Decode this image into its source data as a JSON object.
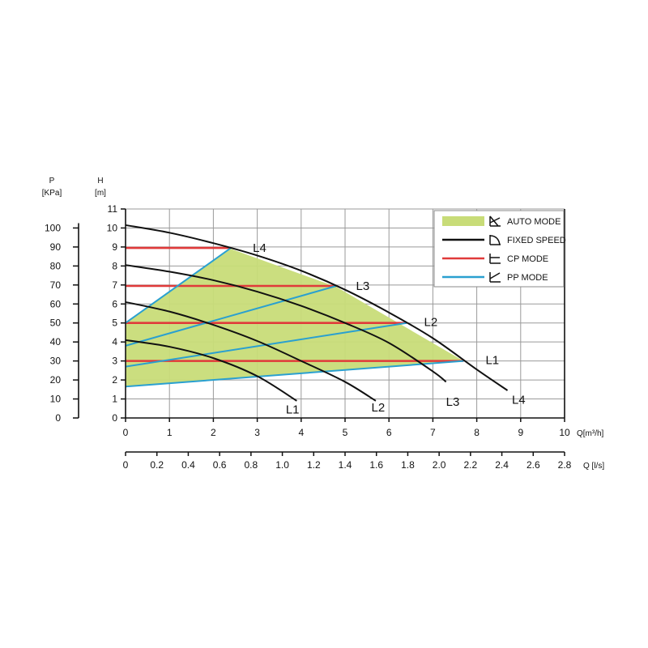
{
  "chart_data": {
    "type": "line",
    "axes": {
      "pressure": {
        "label": "P",
        "unit": "[KPa]",
        "range": [
          0,
          110
        ],
        "ticks": [
          0,
          10,
          20,
          30,
          40,
          50,
          60,
          70,
          80,
          90,
          100
        ]
      },
      "head": {
        "label": "H",
        "unit": "[m]",
        "range": [
          0,
          11
        ],
        "ticks": [
          0,
          1,
          2,
          3,
          4,
          5,
          6,
          7,
          8,
          9,
          10,
          11
        ]
      },
      "flow_m3h": {
        "label": "Q[m³/h]",
        "range": [
          0,
          10
        ],
        "ticks": [
          0,
          1,
          2,
          3,
          4,
          5,
          6,
          7,
          8,
          9,
          10
        ]
      },
      "flow_ls": {
        "label": "Q [l/s]",
        "range": [
          0,
          2.8
        ],
        "ticks": [
          "0",
          "0.2",
          "0.4",
          "0.6",
          "0.8",
          "1.0",
          "1.2",
          "1.4",
          "1.6",
          "1.8",
          "2.0",
          "2.2",
          "2.4",
          "2.6",
          "2.8"
        ]
      }
    },
    "grid": true,
    "legend": {
      "placement": "top-right",
      "entries": [
        {
          "label": "AUTO MODE",
          "type": "area",
          "color": "#c8dc78",
          "icon": "auto-mode-icon"
        },
        {
          "label": "FIXED SPEED",
          "type": "line",
          "color": "#111111",
          "icon": "fixed-speed-icon"
        },
        {
          "label": "CP MODE",
          "type": "line",
          "color": "#e03a3a",
          "icon": "cp-mode-icon"
        },
        {
          "label": "PP MODE",
          "type": "line",
          "color": "#2aa0d0",
          "icon": "pp-mode-icon"
        }
      ]
    },
    "auto_mode_area": [
      [
        0,
        1.65
      ],
      [
        7.7,
        3.0
      ],
      [
        4.8,
        6.9
      ],
      [
        2.4,
        8.9
      ],
      [
        0,
        5.0
      ]
    ],
    "fixed_speed_curves": [
      {
        "name": "L1",
        "points": [
          [
            0,
            4.1
          ],
          [
            1,
            3.75
          ],
          [
            2,
            3.15
          ],
          [
            3,
            2.2
          ],
          [
            3.9,
            0.9
          ]
        ]
      },
      {
        "name": "L2",
        "points": [
          [
            0,
            6.1
          ],
          [
            1,
            5.6
          ],
          [
            2,
            4.9
          ],
          [
            3,
            4.05
          ],
          [
            4,
            3.0
          ],
          [
            5,
            1.9
          ],
          [
            5.7,
            0.9
          ]
        ]
      },
      {
        "name": "L3",
        "points": [
          [
            0,
            8.05
          ],
          [
            1,
            7.7
          ],
          [
            2,
            7.25
          ],
          [
            3,
            6.65
          ],
          [
            4,
            5.9
          ],
          [
            5,
            5.0
          ],
          [
            6,
            3.95
          ],
          [
            7,
            2.45
          ],
          [
            7.3,
            1.9
          ]
        ]
      },
      {
        "name": "L4",
        "points": [
          [
            0,
            10.15
          ],
          [
            1,
            9.75
          ],
          [
            2,
            9.2
          ],
          [
            3,
            8.55
          ],
          [
            4,
            7.75
          ],
          [
            5,
            6.75
          ],
          [
            6,
            5.55
          ],
          [
            7,
            4.2
          ],
          [
            8,
            2.55
          ],
          [
            8.7,
            1.45
          ]
        ]
      }
    ],
    "cp_mode_lines": [
      {
        "name": "L1",
        "points": [
          [
            0,
            3.0
          ],
          [
            7.7,
            3.0
          ]
        ]
      },
      {
        "name": "L2",
        "points": [
          [
            0,
            5.0
          ],
          [
            6.4,
            5.0
          ]
        ]
      },
      {
        "name": "L3",
        "points": [
          [
            0,
            6.95
          ],
          [
            4.8,
            6.95
          ]
        ]
      },
      {
        "name": "L4",
        "points": [
          [
            0,
            8.95
          ],
          [
            2.4,
            8.95
          ]
        ]
      }
    ],
    "pp_mode_lines": [
      {
        "name": "L1",
        "points": [
          [
            0,
            1.65
          ],
          [
            7.7,
            3.0
          ]
        ]
      },
      {
        "name": "L2",
        "points": [
          [
            0,
            2.7
          ],
          [
            6.4,
            5.0
          ]
        ]
      },
      {
        "name": "L3",
        "points": [
          [
            0,
            3.8
          ],
          [
            4.8,
            6.95
          ]
        ]
      },
      {
        "name": "L4",
        "points": [
          [
            0,
            5.0
          ],
          [
            2.4,
            8.95
          ]
        ]
      }
    ],
    "labels": [
      {
        "text": "L1",
        "x": 3.65,
        "y": 0.45
      },
      {
        "text": "L2",
        "x": 5.6,
        "y": 0.55
      },
      {
        "text": "L3",
        "x": 7.3,
        "y": 0.85
      },
      {
        "text": "L4",
        "x": 8.8,
        "y": 0.95
      },
      {
        "text": "L1",
        "x": 8.2,
        "y": 3.05
      },
      {
        "text": "L2",
        "x": 6.8,
        "y": 5.05
      },
      {
        "text": "L3",
        "x": 5.25,
        "y": 6.95
      },
      {
        "text": "L4",
        "x": 2.9,
        "y": 8.95
      }
    ]
  }
}
